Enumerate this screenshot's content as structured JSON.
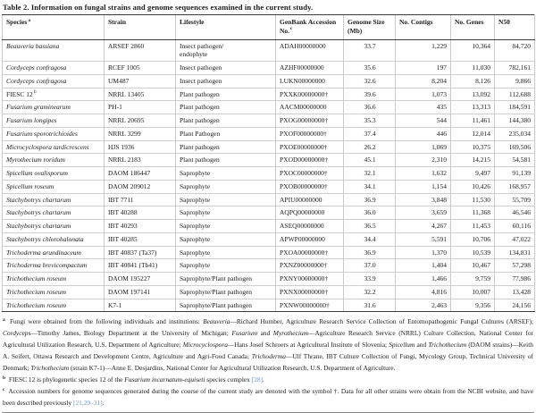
{
  "title": "Table 2.  Information on fungal strains and genome sequences examined in the current study.",
  "colors": {
    "reference_link": "#7596bd",
    "rule_dark": "#3c3c3c",
    "rule_light": "#c9c9c9"
  },
  "table": {
    "columns": [
      {
        "label": "Species",
        "sup": "a"
      },
      {
        "label": "Strain",
        "sup": ""
      },
      {
        "label": "Lifestyle",
        "sup": ""
      },
      {
        "label": "GenBank Accession No.",
        "sup": "c"
      },
      {
        "label": "Genome Size (Mb)",
        "sup": ""
      },
      {
        "label": "No. Contigs",
        "sup": ""
      },
      {
        "label": "No. Genes",
        "sup": ""
      },
      {
        "label": "N50",
        "sup": ""
      }
    ],
    "rows": [
      {
        "species": "Beauveria bassiana",
        "italic": true,
        "sup": "",
        "strain": "ARSEF 2860",
        "lifestyle": "Insect pathogen/\nendophyte",
        "accession": "ADAH00000000",
        "size": "33.7",
        "contigs": "1,229",
        "genes": "10,364",
        "n50": "84,720"
      },
      {
        "species": "Cordyceps confragosa",
        "italic": true,
        "sup": "",
        "strain": "RCEF 1005",
        "lifestyle": "Insect pathogen",
        "accession": "AZHF00000000",
        "size": "35.6",
        "contigs": "197",
        "genes": "11,030",
        "n50": "782,161"
      },
      {
        "species": "Cordyceps confragosa",
        "italic": true,
        "sup": "",
        "strain": "UM487",
        "lifestyle": "Insect pathogen",
        "accession": "LUKN00000000",
        "size": "32.6",
        "contigs": "8,204",
        "genes": "8,126",
        "n50": "9,866"
      },
      {
        "species": "FIESC 12",
        "italic": false,
        "sup": "b",
        "strain": "NRRL 13405",
        "lifestyle": "Plant pathogen",
        "accession": "PXXK00000000†",
        "size": "39.6",
        "contigs": "1,073",
        "genes": "13,092",
        "n50": "112,688"
      },
      {
        "species": "Fusarium graminearum",
        "italic": true,
        "sup": "",
        "strain": "PH-1",
        "lifestyle": "Plant pathogen",
        "accession": "AACM00000000",
        "size": "36.6",
        "contigs": "435",
        "genes": "13,313",
        "n50": "184,591"
      },
      {
        "species": "Fusarium longipes",
        "italic": true,
        "sup": "",
        "strain": "NRRL 20695",
        "lifestyle": "Plant pathogen",
        "accession": "PXOG00000000†",
        "size": "35.3",
        "contigs": "544",
        "genes": "11,461",
        "n50": "144,380"
      },
      {
        "species": "Fusarium sporotrichioides",
        "italic": true,
        "sup": "",
        "strain": "NRRL 3299",
        "lifestyle": "Plant Pathogen",
        "accession": "PXOF00000000†",
        "size": "37.4",
        "contigs": "446",
        "genes": "12,014",
        "n50": "235,034"
      },
      {
        "species": "Microcyclospora tardicrescens",
        "italic": true,
        "sup": "",
        "strain": "HJS 1936",
        "lifestyle": "Plant pathogen",
        "accession": "PXOE00000000†",
        "size": "26.2",
        "contigs": "1,069",
        "genes": "10,375",
        "n50": "169,506"
      },
      {
        "species": "Myrothecium roridum",
        "italic": true,
        "sup": "",
        "strain": "NRRL 2183",
        "lifestyle": "Plant pathogen",
        "accession": "PXOD00000000†",
        "size": "45.1",
        "contigs": "2,310",
        "genes": "14,215",
        "n50": "54,581"
      },
      {
        "species": "Spicellum ovalisporum",
        "italic": true,
        "sup": "",
        "strain": "DAOM 186447",
        "lifestyle": "Saprophyte",
        "accession": "PXOC00000000†",
        "size": "32.1",
        "contigs": "1,632",
        "genes": "9,497",
        "n50": "91,139"
      },
      {
        "species": "Spicellum roseum",
        "italic": true,
        "sup": "",
        "strain": "DAOM 209012",
        "lifestyle": "Saprophyte",
        "accession": "PXOB00000000†",
        "size": "34.1",
        "contigs": "1,154",
        "genes": "10,426",
        "n50": "168,957"
      },
      {
        "species": "Stachybotrys chartarum",
        "italic": true,
        "sup": "",
        "strain": "IBT 7711",
        "lifestyle": "Saprophyte",
        "accession": "APIU00000000",
        "size": "36.9",
        "contigs": "3,848",
        "genes": "11,530",
        "n50": "55,709"
      },
      {
        "species": "Stachybotrys chartarum",
        "italic": true,
        "sup": "",
        "strain": "IBT 40288",
        "lifestyle": "Saprophyte",
        "accession": "AQPQ00000000",
        "size": "36.0",
        "contigs": "3,659",
        "genes": "11,368",
        "n50": "46,546"
      },
      {
        "species": "Stachybotrys chartarum",
        "italic": true,
        "sup": "",
        "strain": "IBT 40293",
        "lifestyle": "Saprophyte",
        "accession": "ASEQ00000000",
        "size": "36.5",
        "contigs": "4,267",
        "genes": "11,453",
        "n50": "60,116"
      },
      {
        "species": "Stachybotrys chlorohalonata",
        "italic": true,
        "sup": "",
        "strain": "IBT 40285",
        "lifestyle": "Saprophyte",
        "accession": "APWP00000000",
        "size": "34.4",
        "contigs": "5,591",
        "genes": "10,706",
        "n50": "47,022"
      },
      {
        "species": "Trichoderma arundinaceum",
        "italic": true,
        "sup": "",
        "strain": "IBT 40837 (Ta37)",
        "lifestyle": "Saprophyte",
        "accession": "PXOA00000000†",
        "size": "36.9",
        "contigs": "1,370",
        "genes": "10,539",
        "n50": "134,831"
      },
      {
        "species": "Trichoderma brevicompactum",
        "italic": true,
        "sup": "",
        "strain": "IBT 40841 (Tb41)",
        "lifestyle": "Saprophyte",
        "accession": "PXNZ00000000†",
        "size": "37.0",
        "contigs": "1,404",
        "genes": "10,467",
        "n50": "57,298"
      },
      {
        "species": "Trichothecium roseum",
        "italic": true,
        "sup": "",
        "strain": "DAOM 195227",
        "lifestyle": "Saprophyte/Plant pathogen",
        "accession": "PXNY00000000†",
        "size": "33.9",
        "contigs": "1,466",
        "genes": "9,759",
        "n50": "77,986"
      },
      {
        "species": "Trichothecium roseum",
        "italic": true,
        "sup": "",
        "strain": "DAOM 197141",
        "lifestyle": "Saprophyte/Plant pathogen",
        "accession": "PXNX00000000†",
        "size": "32.2",
        "contigs": "4,816",
        "genes": "10,007",
        "n50": "13,428"
      },
      {
        "species": "Trichothecium roseum",
        "italic": true,
        "sup": "",
        "strain": "K7-1",
        "lifestyle": "Saprophyte/Plant pathogen",
        "accession": "PXNW00000000†",
        "size": "31.6",
        "contigs": "2,463",
        "genes": "9,356",
        "n50": "24,156"
      }
    ]
  },
  "footnotes": [
    {
      "marker": "a",
      "segments": [
        {
          "t": "Fungi were obtained from the following individuals and institutions: "
        },
        {
          "t": "Beauveria",
          "i": true
        },
        {
          "t": "—Richard Humber, Agriculture Research Service Collection of Entomopathogenic Fungal Cultures (ARSEF); "
        },
        {
          "t": "Cordyceps",
          "i": true
        },
        {
          "t": "—Timothy James, Biology Department at the University of Michigan; "
        },
        {
          "t": "Fusarium",
          "i": true
        },
        {
          "t": " and "
        },
        {
          "t": "Myrothecium",
          "i": true
        },
        {
          "t": "—Agriculture Research Service (NRRL) Culture Collection, National Center for Agricultural Utilization Research, U.S. Department of Agriculture; "
        },
        {
          "t": "Microcyclospora",
          "i": true
        },
        {
          "t": "—Hans Josef Schroers at Agricultural Institute of Slovenia; "
        },
        {
          "t": "Spicellum",
          "i": true
        },
        {
          "t": " and "
        },
        {
          "t": "Trichothecium",
          "i": true
        },
        {
          "t": " (DAOM strains)—Keith A. Seifert, Ottawa Research and Development Centre, Agriculture and Agri-Food Canada; "
        },
        {
          "t": "Trichoderma",
          "i": true
        },
        {
          "t": "—Ulf Thrane, IBT Culture Collection of Fungi, Mycology Group, Technical University of Denmark; "
        },
        {
          "t": "Trichothecium",
          "i": true
        },
        {
          "t": " (strain K7-1)—Anne E. Desjardins, National Center for Agricultural Utilization Research, U.S. Department of Agriculture."
        }
      ]
    },
    {
      "marker": "b",
      "segments": [
        {
          "t": "FIESC 12 is phylogenetic species 12 of the "
        },
        {
          "t": "Fusarium incarnatum-equiseti",
          "i": true
        },
        {
          "t": " species complex "
        },
        {
          "t": "[28]",
          "link": true
        },
        {
          "t": "."
        }
      ]
    },
    {
      "marker": "c",
      "segments": [
        {
          "t": "Accession numbers for genome sequences generated during the course of the current study are denoted with the symbol †. Data for all other strains were obtain from the NCBI website, and have been described previously "
        },
        {
          "t": "[21,29–31]",
          "link": true
        },
        {
          "t": "."
        }
      ]
    }
  ]
}
